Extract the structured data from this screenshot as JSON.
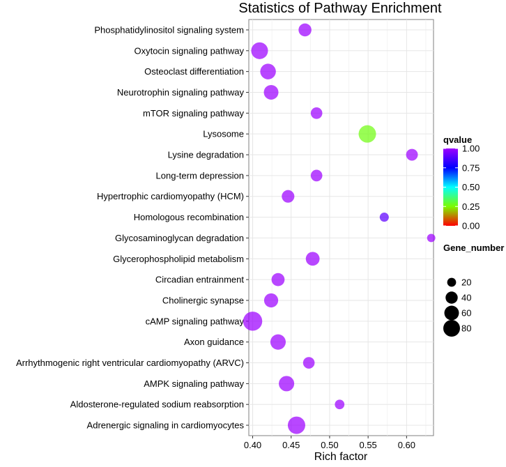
{
  "chart_data": {
    "type": "scatter",
    "title": "Statistics of Pathway Enrichment",
    "xlabel": "Rich factor",
    "ylabel": "",
    "xlim": [
      0.395,
      0.635
    ],
    "x_ticks": [
      0.4,
      0.45,
      0.5,
      0.55,
      0.6
    ],
    "x_tick_labels": [
      "0.40",
      "0.45",
      "0.50",
      "0.55",
      "0.60"
    ],
    "grid": true,
    "categories": [
      "Phosphatidylinositol signaling system",
      "Oxytocin signaling pathway",
      "Osteoclast differentiation",
      "Neurotrophin signaling pathway",
      "mTOR signaling pathway",
      "Lysosome",
      "Lysine degradation",
      "Long-term depression",
      "Hypertrophic cardiomyopathy (HCM)",
      "Homologous recombination",
      "Glycosaminoglycan degradation",
      "Glycerophospholipid metabolism",
      "Circadian entrainment",
      "Cholinergic synapse",
      "cAMP signaling pathway",
      "Axon guidance",
      "Arrhythmogenic right ventricular cardiomyopathy (ARVC)",
      "AMPK signaling pathway",
      "Aldosterone-regulated sodium reabsorption",
      "Adrenergic signaling in cardiomyocytes"
    ],
    "points": [
      {
        "term": "Phosphatidylinositol signaling system",
        "rich_factor": 0.468,
        "gene_number": 32,
        "qvalue": 1.0
      },
      {
        "term": "Oxytocin signaling pathway",
        "rich_factor": 0.409,
        "gene_number": 62,
        "qvalue": 1.0
      },
      {
        "term": "Osteoclast differentiation",
        "rich_factor": 0.42,
        "gene_number": 52,
        "qvalue": 1.0
      },
      {
        "term": "Neurotrophin signaling pathway",
        "rich_factor": 0.424,
        "gene_number": 44,
        "qvalue": 1.0
      },
      {
        "term": "mTOR signaling pathway",
        "rich_factor": 0.483,
        "gene_number": 24,
        "qvalue": 1.0
      },
      {
        "term": "Lysosome",
        "rich_factor": 0.549,
        "gene_number": 68,
        "qvalue": 0.27
      },
      {
        "term": "Lysine degradation",
        "rich_factor": 0.607,
        "gene_number": 25,
        "qvalue": 1.0
      },
      {
        "term": "Long-term depression",
        "rich_factor": 0.483,
        "gene_number": 24,
        "qvalue": 1.0
      },
      {
        "term": "Hypertrophic cardiomyopathy (HCM)",
        "rich_factor": 0.446,
        "gene_number": 30,
        "qvalue": 1.0
      },
      {
        "term": "Homologous recombination",
        "rich_factor": 0.571,
        "gene_number": 12,
        "qvalue": 0.9
      },
      {
        "term": "Glycosaminoglycan degradation",
        "rich_factor": 0.632,
        "gene_number": 9,
        "qvalue": 1.0
      },
      {
        "term": "Glycerophospholipid metabolism",
        "rich_factor": 0.478,
        "gene_number": 38,
        "qvalue": 1.0
      },
      {
        "term": "Circadian entrainment",
        "rich_factor": 0.433,
        "gene_number": 33,
        "qvalue": 1.0
      },
      {
        "term": "Cholinergic synapse",
        "rich_factor": 0.424,
        "gene_number": 40,
        "qvalue": 1.0
      },
      {
        "term": "cAMP signaling pathway",
        "rich_factor": 0.4,
        "gene_number": 85,
        "qvalue": 1.0
      },
      {
        "term": "Axon guidance",
        "rich_factor": 0.433,
        "gene_number": 50,
        "qvalue": 1.0
      },
      {
        "term": "Arrhythmogenic right ventricular cardiomyopathy (ARVC)",
        "rich_factor": 0.473,
        "gene_number": 24,
        "qvalue": 1.0
      },
      {
        "term": "AMPK signaling pathway",
        "rich_factor": 0.444,
        "gene_number": 50,
        "qvalue": 1.0
      },
      {
        "term": "Aldosterone-regulated sodium reabsorption",
        "rich_factor": 0.513,
        "gene_number": 14,
        "qvalue": 1.0
      },
      {
        "term": "Adrenergic signaling in cardiomyocytes",
        "rich_factor": 0.457,
        "gene_number": 68,
        "qvalue": 1.0
      }
    ],
    "color_legend": {
      "title": "qvalue",
      "range": [
        0.0,
        1.0
      ],
      "tick_values": [
        1.0,
        0.75,
        0.5,
        0.25,
        0.0
      ],
      "tick_labels": [
        "1.00",
        "0.75",
        "0.50",
        "0.25",
        "0.00"
      ],
      "colors": [
        "#ff0000",
        "#7cfc00",
        "#00ffff",
        "#0000ff",
        "#9d00ff"
      ]
    },
    "size_legend": {
      "title": "Gene_number",
      "values": [
        20,
        40,
        60,
        80
      ],
      "labels": [
        "20",
        "40",
        "60",
        "80"
      ]
    }
  }
}
